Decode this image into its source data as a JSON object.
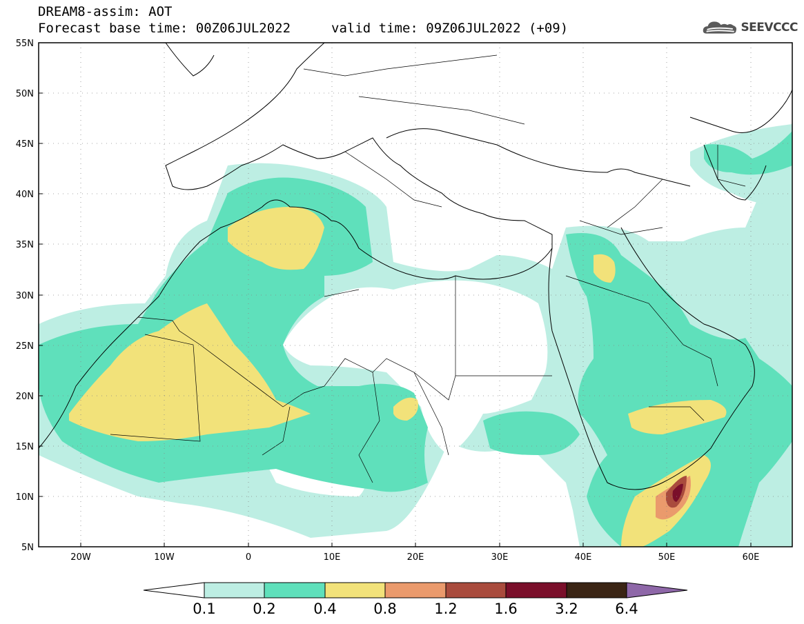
{
  "header": {
    "title_line1": "DREAM8-assim: AOT",
    "title_line2": "Forecast base time: 00Z06JUL2022",
    "valid_time": "valid time: 09Z06JUL2022 (+09)",
    "logo_text": "SEEVCCC",
    "logo_icon": "cloud-icon"
  },
  "map": {
    "variable": "AOT",
    "extent": {
      "lon": [
        -25,
        65
      ],
      "lat": [
        5,
        55
      ]
    },
    "lat_ticks": [
      "55N",
      "50N",
      "45N",
      "40N",
      "35N",
      "30N",
      "25N",
      "20N",
      "15N",
      "10N",
      "5N"
    ],
    "lon_ticks": [
      "20W",
      "10W",
      "0",
      "10E",
      "20E",
      "30E",
      "40E",
      "50E",
      "60E"
    ],
    "gridlines": "dotted",
    "land_color": "#ffffff"
  },
  "colorbar": {
    "levels": [
      "0.1",
      "0.2",
      "0.4",
      "0.8",
      "1.2",
      "1.6",
      "3.2",
      "6.4"
    ],
    "colors": [
      "#ffffff",
      "#bdeee3",
      "#5fe0bb",
      "#f2e27a",
      "#ea9a6c",
      "#a94b3d",
      "#7a0f2a",
      "#3a2414",
      "#8e67a8"
    ]
  }
}
